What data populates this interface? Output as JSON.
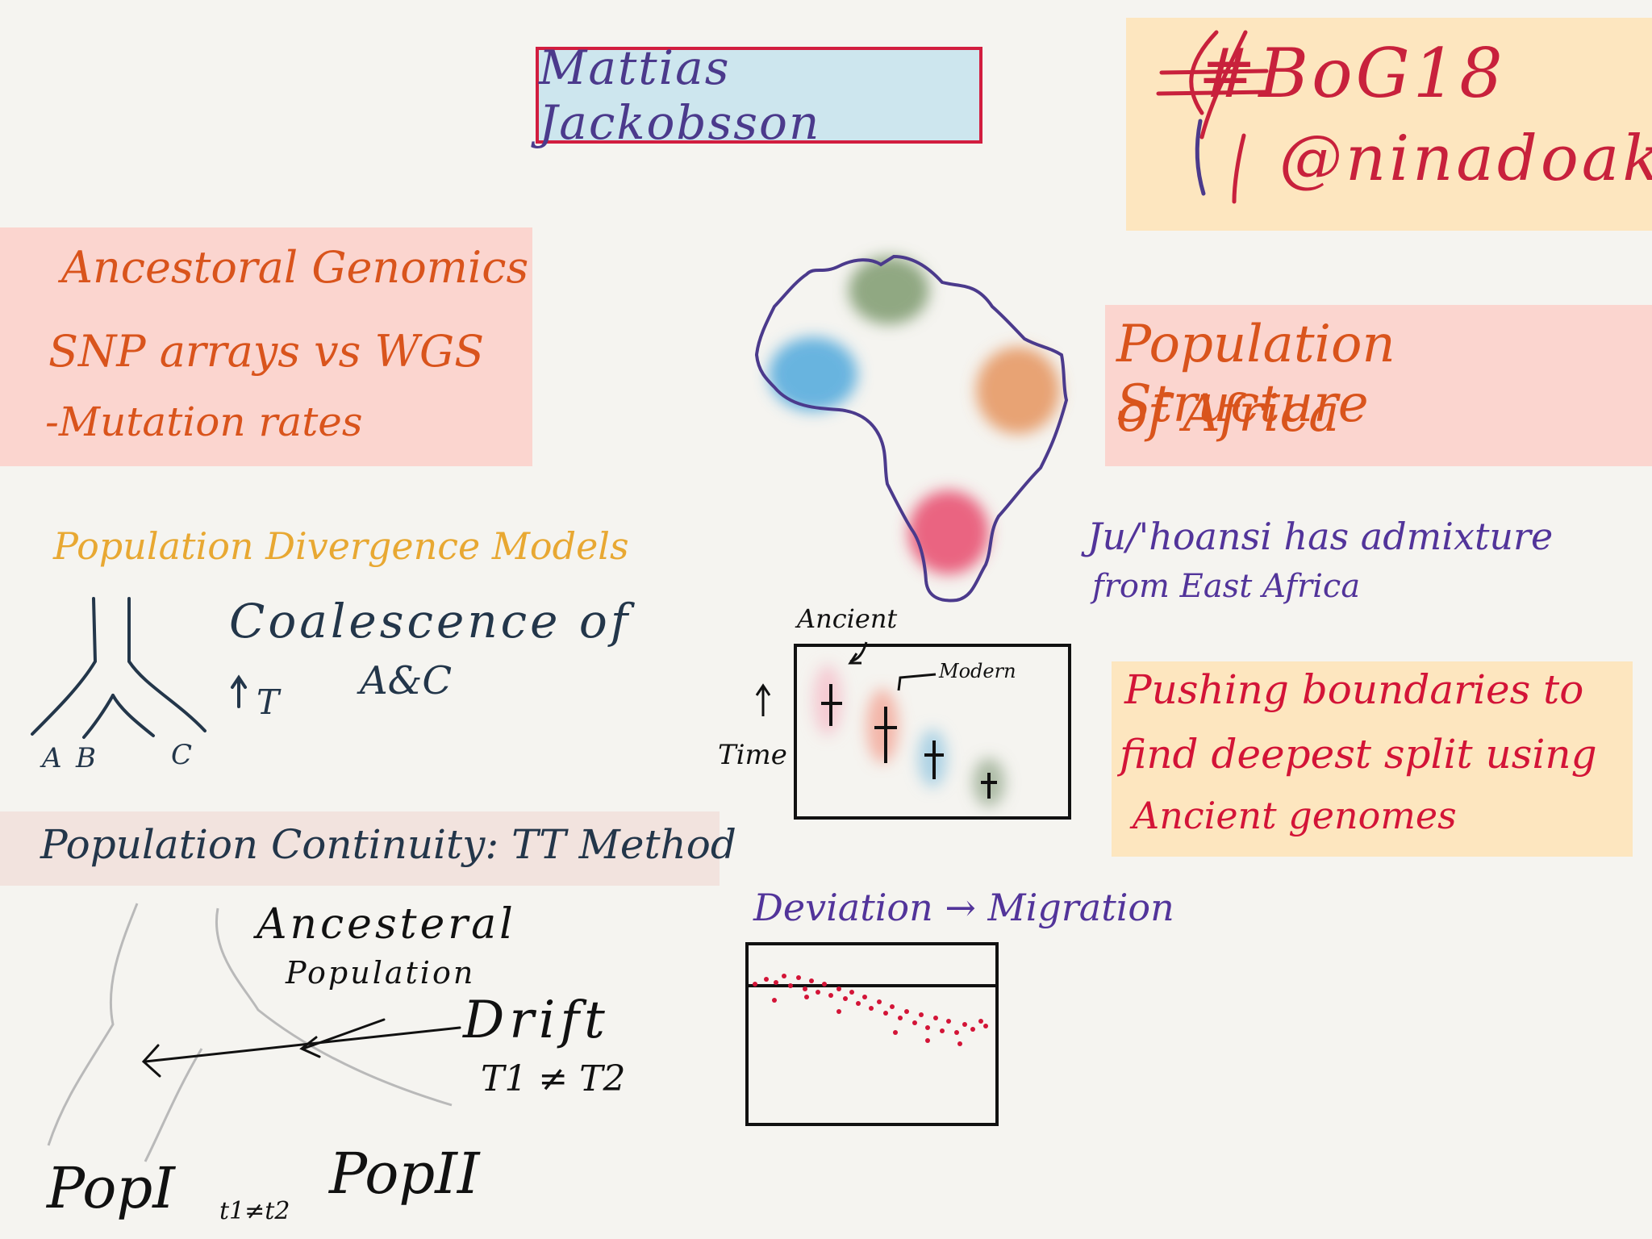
{
  "title": {
    "name": "Mattias Jackobsson"
  },
  "tag": {
    "hashtag": "#BoG18",
    "handle": "@ninadoak"
  },
  "ancestral": {
    "heading": "Ancestoral Genomics",
    "line1": "SNP arrays vs WGS",
    "line2": "-Mutation rates"
  },
  "divergence": {
    "heading": "Population Divergence Models",
    "coalescence": "Coalescence of",
    "ac": "A&C",
    "t_label": "T",
    "labels": {
      "a": "A",
      "b": "B",
      "c": "C"
    }
  },
  "continuity": {
    "heading": "Population Continuity: TT Method",
    "ancestral": "Ancesteral",
    "population": "Population",
    "drift": "Drift",
    "t1t2": "T1 ≠ T2",
    "pop1": "PopI",
    "sub": "t1≠t2",
    "pop2": "PopII"
  },
  "africa": {
    "heading_line1": "Population Structure",
    "heading_line2": "of Africa",
    "note_line1": "Ju/'hoansi has admixture",
    "note_line2": "from East Africa",
    "blob_colors": [
      "#7e9a6e",
      "#4fa8dc",
      "#e5945e",
      "#e84a6c"
    ]
  },
  "time_plot": {
    "ancient": "Ancient",
    "modern": "Modern",
    "time": "Time"
  },
  "pushing": {
    "line1": "Pushing boundaries to",
    "line2": "find deepest split using",
    "line3": "Ancient genomes"
  },
  "migration": {
    "label": "Deviation → Migration"
  }
}
